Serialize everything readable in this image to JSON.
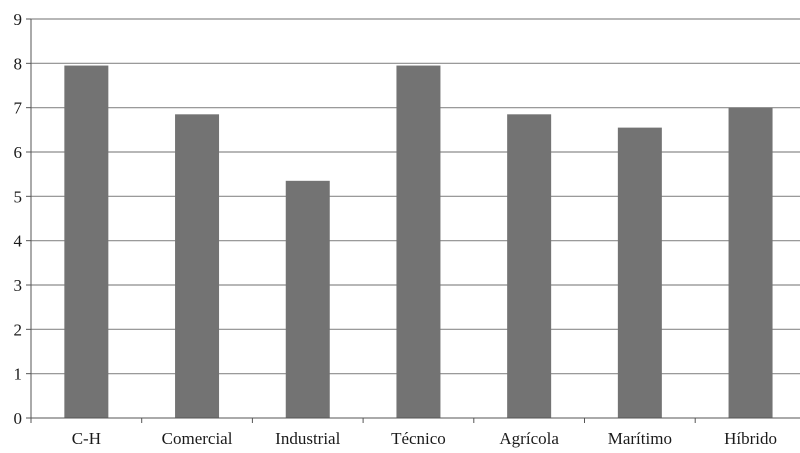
{
  "chart_data": {
    "type": "bar",
    "categories": [
      "C-H",
      "Comercial",
      "Industrial",
      "Técnico",
      "Agrícola",
      "Marítimo",
      "Híbrido"
    ],
    "values": [
      7.95,
      6.85,
      5.35,
      7.95,
      6.85,
      6.55,
      7.0
    ],
    "title": "",
    "xlabel": "",
    "ylabel": "",
    "ylim": [
      0,
      9
    ],
    "yticks": [
      "0",
      "1",
      "2",
      "3",
      "4",
      "5",
      "6",
      "7",
      "8",
      "9"
    ],
    "grid": true,
    "legend": "none",
    "bar_color": "#737373",
    "grid_color": "#8c8c8c"
  }
}
